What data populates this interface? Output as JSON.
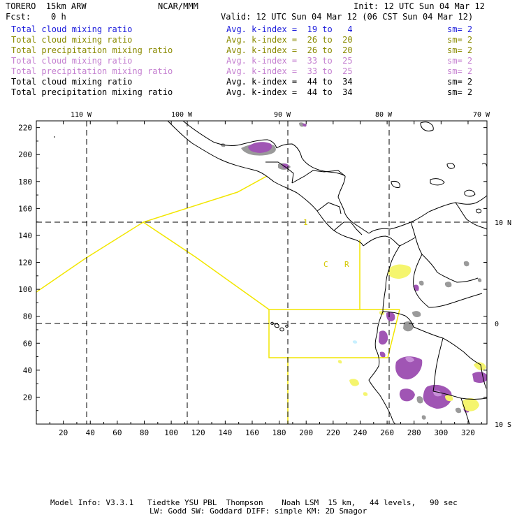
{
  "header": {
    "model": "TORERO  15km ARW",
    "org": "NCAR/MMM",
    "init": "Init: 12 UTC Sun 04 Mar 12",
    "fcst": "Fcst:    0 h",
    "valid": "Valid: 12 UTC Sun 04 Mar 12 (06 CST Sun 04 Mar 12)"
  },
  "legend_rows": [
    {
      "field": "Total cloud mixing ratio",
      "kindex": "Avg. k-index =  19 to   4",
      "sm": "sm= 2",
      "color": "#1a1adb"
    },
    {
      "field": "Total cloud mixing ratio",
      "kindex": "Avg. k-index =  26 to  20",
      "sm": "sm= 2",
      "color": "#8a8a00"
    },
    {
      "field": "Total precipitation mixing ratio",
      "kindex": "Avg. k-index =  26 to  20",
      "sm": "sm= 2",
      "color": "#8a8a00"
    },
    {
      "field": "Total cloud mixing ratio",
      "kindex": "Avg. k-index =  33 to  25",
      "sm": "sm= 2",
      "color": "#c47fd0"
    },
    {
      "field": "Total precipitation mixing ratio",
      "kindex": "Avg. k-index =  33 to  25",
      "sm": "sm= 2",
      "color": "#c47fd0"
    },
    {
      "field": "Total cloud mixing ratio",
      "kindex": "Avg. k-index =  44 to  34",
      "sm": "sm= 2",
      "color": "#000000"
    },
    {
      "field": "Total precipitation mixing ratio",
      "kindex": "Avg. k-index =  44 to  34",
      "sm": "sm= 2",
      "color": "#000000"
    }
  ],
  "map": {
    "lon_labels": [
      "110 W",
      "100 W",
      "90 W",
      "80 W",
      "70 W"
    ],
    "lat_labels": [
      "10 N",
      "0",
      "10 S"
    ],
    "x_ticks": [
      "20",
      "40",
      "60",
      "80",
      "100",
      "120",
      "140",
      "160",
      "180",
      "200",
      "220",
      "240",
      "260",
      "280",
      "300",
      "320"
    ],
    "y_ticks": [
      "220",
      "200",
      "180",
      "160",
      "140",
      "120",
      "100",
      "80",
      "60",
      "40",
      "20"
    ],
    "box_labels": [
      "1",
      "C",
      "R"
    ],
    "colors": {
      "coast": "#000000",
      "grid": "#000000",
      "domain_box": "#f2e600",
      "purple": "#a055b4",
      "purple_light": "#c890d8",
      "gray": "#9a9a9a",
      "yellow": "#f5f56e",
      "cyan": "#c8f0ff"
    }
  },
  "footer": {
    "line1": "Model Info: V3.3.1   Tiedtke YSU PBL  Thompson    Noah LSM  15 km,   44 levels,   90 sec",
    "line2": "LW: Godd SW: Goddard DIFF: simple KM: 2D Smagor"
  }
}
